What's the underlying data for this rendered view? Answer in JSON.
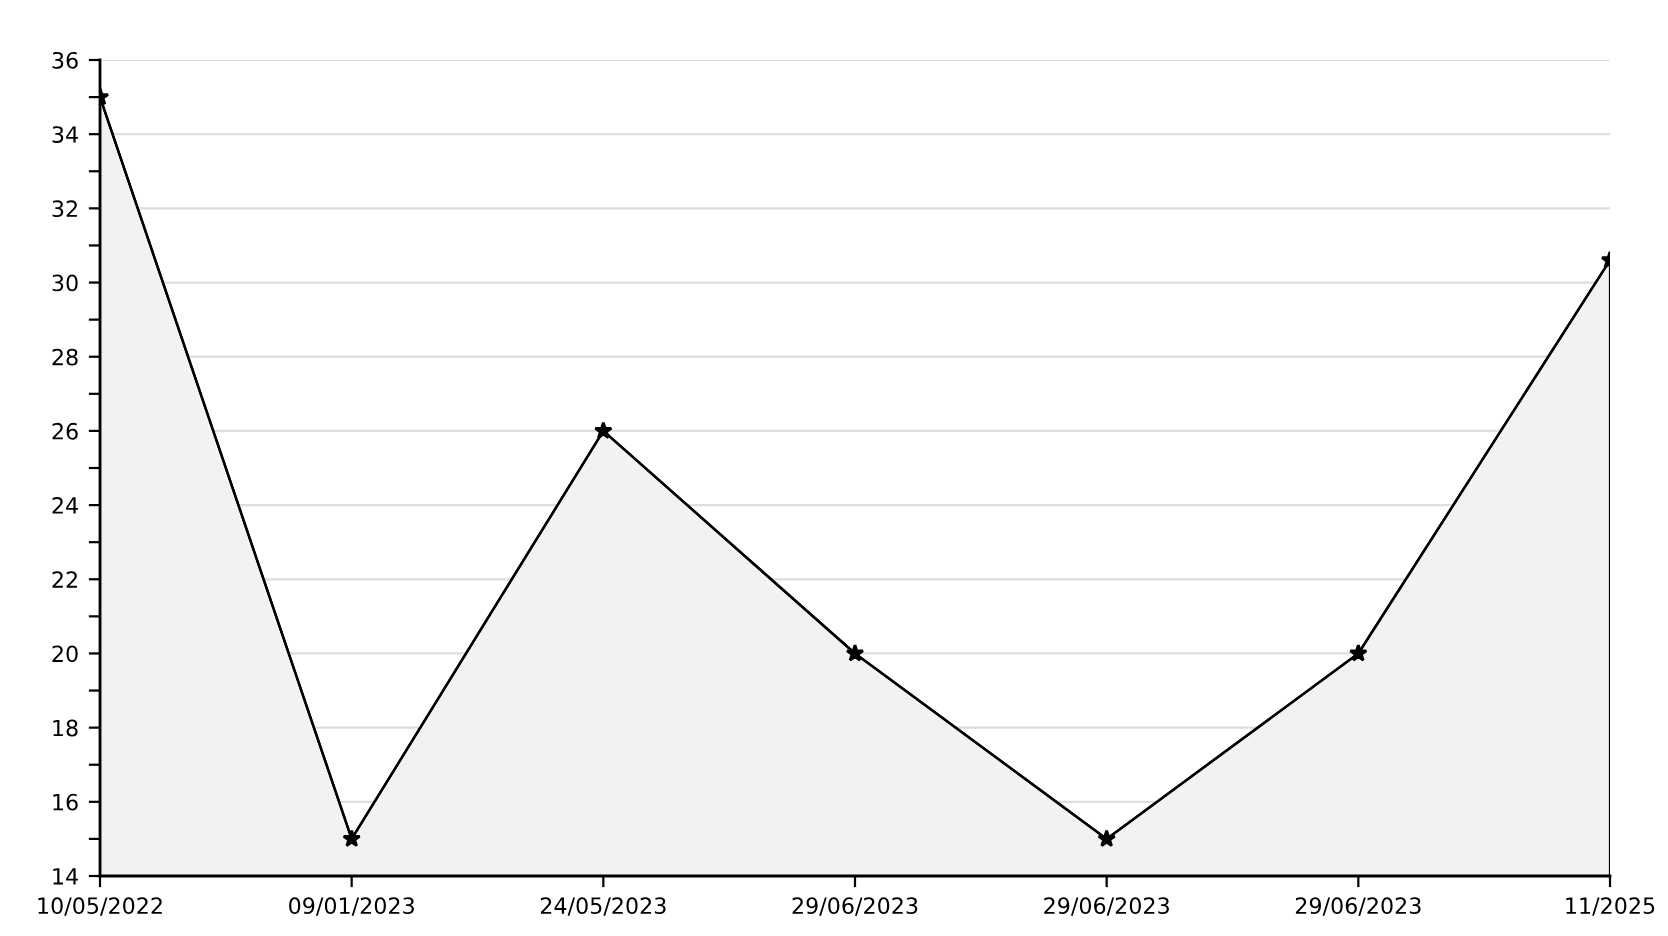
{
  "chart_data": {
    "type": "area",
    "categories": [
      "10/05/2022",
      "09/01/2023",
      "24/05/2023",
      "29/06/2023",
      "29/06/2023",
      "29/06/2023",
      "11/2025"
    ],
    "series": [
      {
        "color": "#000000",
        "values": [
          35,
          15,
          26,
          20,
          15,
          20,
          30.6
        ]
      }
    ],
    "ylim": [
      14,
      36
    ],
    "yticks": [
      14,
      {
        "value": 15,
        "label": null
      },
      16,
      {
        "value": 17,
        "label": null
      },
      18,
      {
        "value": 19,
        "label": null
      },
      20,
      {
        "value": 21,
        "label": null
      },
      22,
      {
        "value": 23,
        "label": null
      },
      24,
      {
        "value": 25,
        "label": null
      },
      26,
      {
        "value": 27,
        "label": null
      },
      28,
      {
        "value": 29,
        "label": null
      },
      30,
      {
        "value": 31,
        "label": null
      },
      32,
      {
        "value": 33,
        "label": null
      },
      34,
      {
        "value": 35,
        "label": null
      },
      36
    ],
    "grid": "y",
    "marker": "star",
    "line_style": "solid"
  }
}
